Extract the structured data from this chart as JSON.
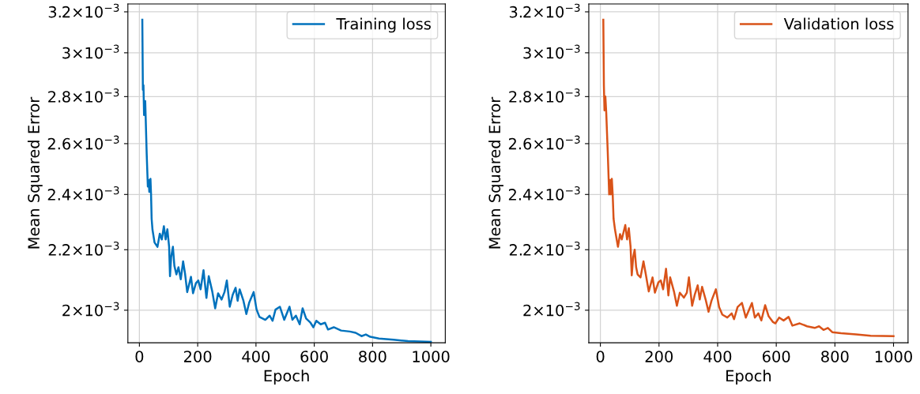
{
  "chart_data": [
    {
      "type": "line",
      "xlabel": "Epoch",
      "ylabel": "Mean Squared Error",
      "log": "y",
      "grid": true,
      "legend": "top right",
      "marker": "none",
      "line_style": "solid",
      "xlim": [
        -39.5,
        1049.5
      ],
      "xticks": [
        0,
        200,
        400,
        600,
        800,
        1000
      ],
      "ylim": [
        0.0019,
        0.00324
      ],
      "yticks": [
        {
          "value": 0.002,
          "label": "2×10$^{−3}$"
        },
        {
          "value": 0.0022,
          "label": "2.2×10$^{−3}$"
        },
        {
          "value": 0.0024,
          "label": "2.4×10$^{−3}$"
        },
        {
          "value": 0.0026,
          "label": "2.6×10$^{−3}$"
        },
        {
          "value": 0.0028,
          "label": "2.8×10$^{−3}$"
        },
        {
          "value": 0.003,
          "label": "3×10$^{−3}$"
        },
        {
          "value": 0.0032,
          "label": "3.2×10$^{−3}$"
        }
      ],
      "x": [
        10,
        12,
        14,
        16,
        20,
        25,
        29,
        32,
        34,
        38,
        40,
        42,
        45,
        52,
        62,
        70,
        77,
        84,
        90,
        96,
        102,
        105,
        109,
        115,
        120,
        127,
        134,
        142,
        150,
        157,
        164,
        177,
        184,
        194,
        202,
        210,
        220,
        230,
        238,
        250,
        260,
        270,
        282,
        292,
        300,
        310,
        320,
        330,
        337,
        344,
        357,
        367,
        377,
        392,
        402,
        412,
        432,
        447,
        457,
        467,
        482,
        497,
        515,
        525,
        537,
        550,
        560,
        572,
        587,
        597,
        607,
        622,
        637,
        647,
        667,
        692,
        722,
        742,
        762,
        777,
        792,
        822,
        872,
        922,
        1000
      ],
      "series": [
        {
          "name": "Training loss",
          "color": "#0072bd",
          "values": [
            0.00316,
            0.00283,
            0.00285,
            0.00272,
            0.00278,
            0.00256,
            0.00243,
            0.002455,
            0.00241,
            0.00246,
            0.0024,
            0.00231,
            0.00227,
            0.002225,
            0.00221,
            0.002256,
            0.002236,
            0.002283,
            0.002236,
            0.002272,
            0.00221,
            0.00211,
            0.002175,
            0.00221,
            0.002145,
            0.002116,
            0.00214,
            0.0021,
            0.00216,
            0.002116,
            0.002058,
            0.002108,
            0.002054,
            0.002087,
            0.002096,
            0.002067,
            0.00213,
            0.002039,
            0.00211,
            0.00206,
            0.002006,
            0.002054,
            0.002034,
            0.002058,
            0.002096,
            0.002011,
            0.002049,
            0.002072,
            0.00203,
            0.002067,
            0.00203,
            0.001988,
            0.002025,
            0.002058,
            0.002002,
            0.001979,
            0.00197,
            0.001983,
            0.001967,
            0.002002,
            0.002011,
            0.00197,
            0.002011,
            0.00197,
            0.001983,
            0.001956,
            0.002006,
            0.001974,
            0.001961,
            0.001947,
            0.001967,
            0.001956,
            0.001961,
            0.00194,
            0.001947,
            0.001937,
            0.001934,
            0.00193,
            0.00192,
            0.001925,
            0.001918,
            0.001913,
            0.001909,
            0.001905,
            0.001903
          ]
        }
      ]
    },
    {
      "type": "line",
      "xlabel": "Epoch",
      "ylabel": "Mean Squared Error",
      "log": "y",
      "grid": true,
      "legend": "top right",
      "marker": "none",
      "line_style": "solid",
      "xlim": [
        -39.5,
        1049.5
      ],
      "xticks": [
        0,
        200,
        400,
        600,
        800,
        1000
      ],
      "ylim": [
        0.0019,
        0.00324
      ],
      "yticks": [
        {
          "value": 0.002,
          "label": "2×10$^{−3}$"
        },
        {
          "value": 0.0022,
          "label": "2.2×10$^{−3}$"
        },
        {
          "value": 0.0024,
          "label": "2.4×10$^{−3}$"
        },
        {
          "value": 0.0026,
          "label": "2.6×10$^{−3}$"
        },
        {
          "value": 0.0028,
          "label": "2.8×10$^{−3}$"
        },
        {
          "value": 0.003,
          "label": "3×10$^{−3}$"
        },
        {
          "value": 0.0032,
          "label": "3.2×10$^{−3}$"
        }
      ],
      "x": [
        10,
        12,
        14,
        17,
        20,
        25,
        30,
        33,
        36,
        39,
        42,
        45,
        50,
        60,
        67,
        73,
        85,
        91,
        97,
        103,
        107,
        112,
        117,
        122,
        127,
        137,
        147,
        155,
        165,
        178,
        186,
        198,
        206,
        214,
        224,
        232,
        238,
        251,
        261,
        271,
        285,
        295,
        302,
        313,
        322,
        332,
        339,
        347,
        359,
        369,
        379,
        394,
        405,
        416,
        433,
        448,
        456,
        468,
        483,
        496,
        517,
        527,
        539,
        549,
        562,
        574,
        589,
        597,
        610,
        625,
        642,
        655,
        680,
        705,
        731,
        746,
        761,
        776,
        791,
        821,
        872,
        922,
        1000
      ],
      "series": [
        {
          "name": "Validation loss",
          "color": "#d95319",
          "values": [
            0.00316,
            0.00285,
            0.00274,
            0.0028,
            0.00273,
            0.00257,
            0.0024,
            0.002455,
            0.0024,
            0.00246,
            0.0024,
            0.00231,
            0.00227,
            0.00221,
            0.002255,
            0.002236,
            0.002287,
            0.002236,
            0.002276,
            0.00221,
            0.002113,
            0.002175,
            0.0022,
            0.00214,
            0.002116,
            0.002106,
            0.00216,
            0.002116,
            0.00206,
            0.002106,
            0.002056,
            0.00209,
            0.002096,
            0.002067,
            0.002135,
            0.002047,
            0.002106,
            0.00206,
            0.002014,
            0.002056,
            0.00204,
            0.002056,
            0.002106,
            0.002014,
            0.00205,
            0.00208,
            0.002034,
            0.002075,
            0.002034,
            0.001995,
            0.00203,
            0.002067,
            0.00201,
            0.001986,
            0.001977,
            0.00199,
            0.001972,
            0.00201,
            0.002023,
            0.001977,
            0.002023,
            0.001977,
            0.00199,
            0.001968,
            0.002016,
            0.001981,
            0.001963,
            0.001959,
            0.001977,
            0.001968,
            0.001979,
            0.001952,
            0.001959,
            0.00195,
            0.001945,
            0.00195,
            0.001939,
            0.001945,
            0.001932,
            0.001929,
            0.001925,
            0.001921,
            0.00192
          ]
        }
      ]
    }
  ]
}
